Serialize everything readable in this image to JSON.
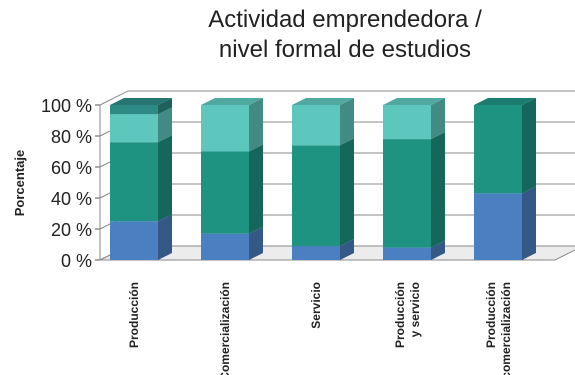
{
  "chart_data": {
    "type": "bar",
    "stacked": true,
    "three_d": true,
    "title_lines": [
      "Actividad emprendedora /",
      "nivel formal de estudios"
    ],
    "ylabel": "Porcentaje",
    "ylim": [
      0,
      100
    ],
    "yticks": [
      "0 %",
      "20 %",
      "40 %",
      "60 %",
      "80 %",
      "100 %"
    ],
    "ytick_values": [
      0,
      20,
      40,
      60,
      80,
      100
    ],
    "grid": true,
    "legend": "none",
    "categories": [
      [
        "Producción"
      ],
      [
        "Comercialización"
      ],
      [
        "Servicio"
      ],
      [
        "Producción",
        "y servicio"
      ],
      [
        "Producción",
        "y comercialización"
      ]
    ],
    "series": [
      {
        "color": "#4a7fc1",
        "values": [
          25,
          17,
          9,
          8,
          43
        ]
      },
      {
        "color": "#1e9382",
        "values": [
          51,
          53,
          65,
          70,
          57
        ]
      },
      {
        "color": "#5ec7bd",
        "values": [
          18,
          30,
          26,
          22,
          0
        ]
      },
      {
        "color": "#2e8a84",
        "values": [
          6,
          0,
          0,
          0,
          0
        ]
      }
    ]
  }
}
